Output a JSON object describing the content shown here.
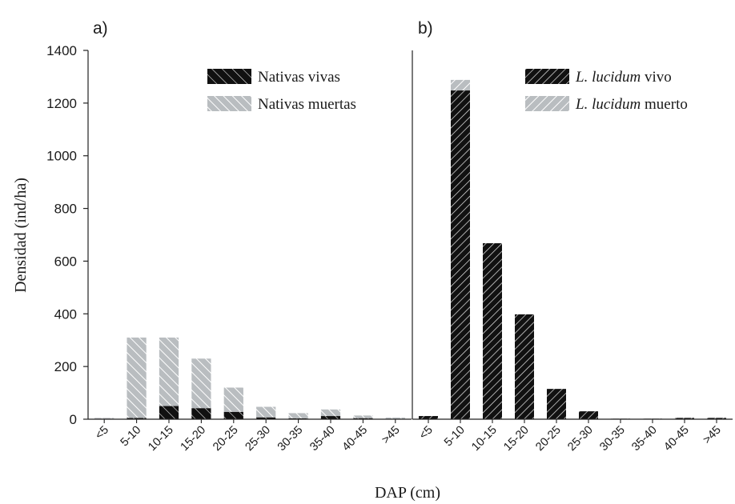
{
  "ylabel": "Densidad (ind/ha)",
  "xlabel": "DAP (cm)",
  "colors": {
    "alive": "#111111",
    "dead": "#b9bdc0",
    "axis": "#222222"
  },
  "chart_data": [
    {
      "type": "bar",
      "stacked": true,
      "panel_label": "a)",
      "categories": [
        "<5",
        "5-10",
        "10-15",
        "15-20",
        "20-25",
        "25-30",
        "30-35",
        "35-40",
        "40-45",
        ">45"
      ],
      "ylim": [
        0,
        1400
      ],
      "yticks": [
        0,
        200,
        400,
        600,
        800,
        1000,
        1200,
        1400
      ],
      "legend_position": "top-right",
      "series": [
        {
          "name": "Nativas vivas",
          "values": [
            2,
            5,
            50,
            42,
            28,
            7,
            3,
            12,
            4,
            1
          ]
        },
        {
          "name": "Nativas muertas",
          "values": [
            3,
            305,
            260,
            188,
            92,
            40,
            20,
            25,
            10,
            5
          ]
        }
      ]
    },
    {
      "type": "bar",
      "stacked": true,
      "panel_label": "b)",
      "categories": [
        "<5",
        "5-10",
        "10-15",
        "15-20",
        "20-25",
        "25-30",
        "30-35",
        "35-40",
        "40-45",
        ">45"
      ],
      "ylim": [
        0,
        1400
      ],
      "legend_position": "top-right",
      "series": [
        {
          "name_italic": "L. lucidum",
          "name_rest": " vivo",
          "values": [
            12,
            1248,
            668,
            398,
            115,
            30,
            2,
            2,
            5,
            5
          ]
        },
        {
          "name_italic": "L. lucidum",
          "name_rest": " muerto",
          "values": [
            0,
            40,
            0,
            0,
            0,
            0,
            0,
            0,
            0,
            0
          ]
        }
      ]
    }
  ]
}
